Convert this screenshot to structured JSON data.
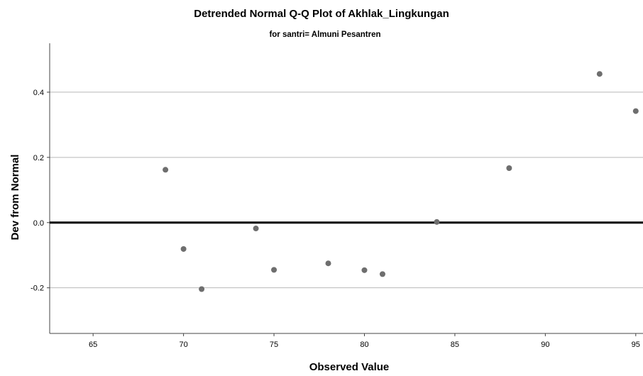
{
  "chart_data": {
    "type": "scatter",
    "title": "Detrended Normal Q-Q Plot of Akhlak_Lingkungan",
    "subtitle": "for santri= Almuni Pesantren",
    "xlabel": "Observed Value",
    "ylabel": "Dev from Normal",
    "xlim": [
      62.6,
      95.4
    ],
    "ylim": [
      -0.34,
      0.55
    ],
    "x_ticks": [
      65,
      70,
      75,
      80,
      85,
      90,
      95
    ],
    "y_ticks": [
      -0.2,
      0.0,
      0.2,
      0.4
    ],
    "x_tick_labels": [
      "65",
      "70",
      "75",
      "80",
      "85",
      "90",
      "95"
    ],
    "y_tick_labels": [
      "-0.2",
      "0.0",
      "0.2",
      "0.4"
    ],
    "grid": "horizontal",
    "reference_line_y": 0,
    "point_color": "#6e6e6e",
    "points": [
      {
        "x": 69,
        "y": 0.162
      },
      {
        "x": 70,
        "y": -0.081
      },
      {
        "x": 71,
        "y": -0.204
      },
      {
        "x": 74,
        "y": -0.018
      },
      {
        "x": 75,
        "y": -0.145
      },
      {
        "x": 78,
        "y": -0.125
      },
      {
        "x": 80,
        "y": -0.146
      },
      {
        "x": 81,
        "y": -0.158
      },
      {
        "x": 84,
        "y": 0.002
      },
      {
        "x": 88,
        "y": 0.167
      },
      {
        "x": 93,
        "y": 0.456
      },
      {
        "x": 95,
        "y": 0.342
      }
    ]
  }
}
